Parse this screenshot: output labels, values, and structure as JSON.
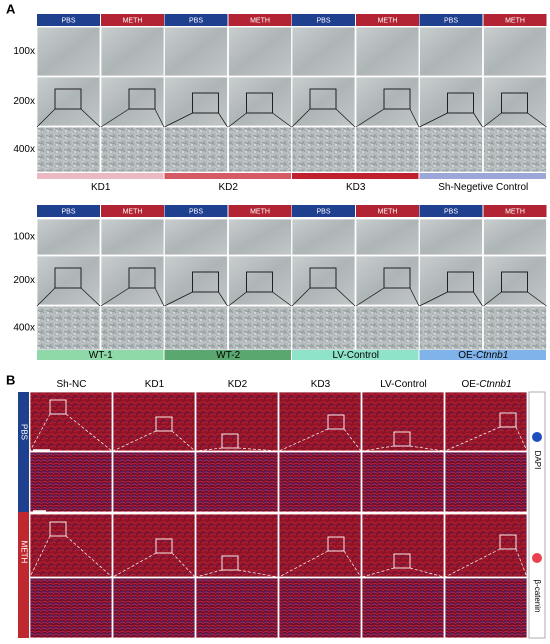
{
  "panel_a": {
    "label": "A",
    "blocks": [
      {
        "conditions": [
          "PBS",
          "METH"
        ],
        "magnifications": [
          "100x",
          "200x",
          "400x"
        ],
        "groups": [
          {
            "text": "KD1",
            "color": "#ebb9c2"
          },
          {
            "text": "KD2",
            "color": "#d65a66"
          },
          {
            "text": "KD3",
            "color": "#c0202e"
          },
          {
            "text": "Sh-Negetive Control",
            "color": "#9ba7d8"
          }
        ]
      },
      {
        "conditions": [
          "PBS",
          "METH"
        ],
        "magnifications": [
          "100x",
          "200x",
          "400x"
        ],
        "groups": [
          {
            "text": "WT-1",
            "color": "#8fd9a8"
          },
          {
            "text": "WT-2",
            "color": "#5aa870"
          },
          {
            "text": "LV-Control",
            "color": "#8fe3c8"
          },
          {
            "text": "OE-",
            "italic": "Ctnnb1",
            "color": "#7fb3ea"
          }
        ]
      }
    ]
  },
  "panel_b": {
    "label": "B",
    "columns": [
      {
        "text": "Sh-NC"
      },
      {
        "text": "KD1"
      },
      {
        "text": "KD2"
      },
      {
        "text": "KD3"
      },
      {
        "text": "LV-Control"
      },
      {
        "text": "OE-",
        "italic": "Ctnnb1"
      }
    ],
    "rows": [
      {
        "text": "PBS",
        "color": "#1f3f8f"
      },
      {
        "text": "METH",
        "color": "#c0282f"
      }
    ],
    "legend": [
      {
        "text": "DAPI",
        "color": "#1f4fbf"
      },
      {
        "text": "β-catenin",
        "color": "#e8434e"
      }
    ]
  }
}
